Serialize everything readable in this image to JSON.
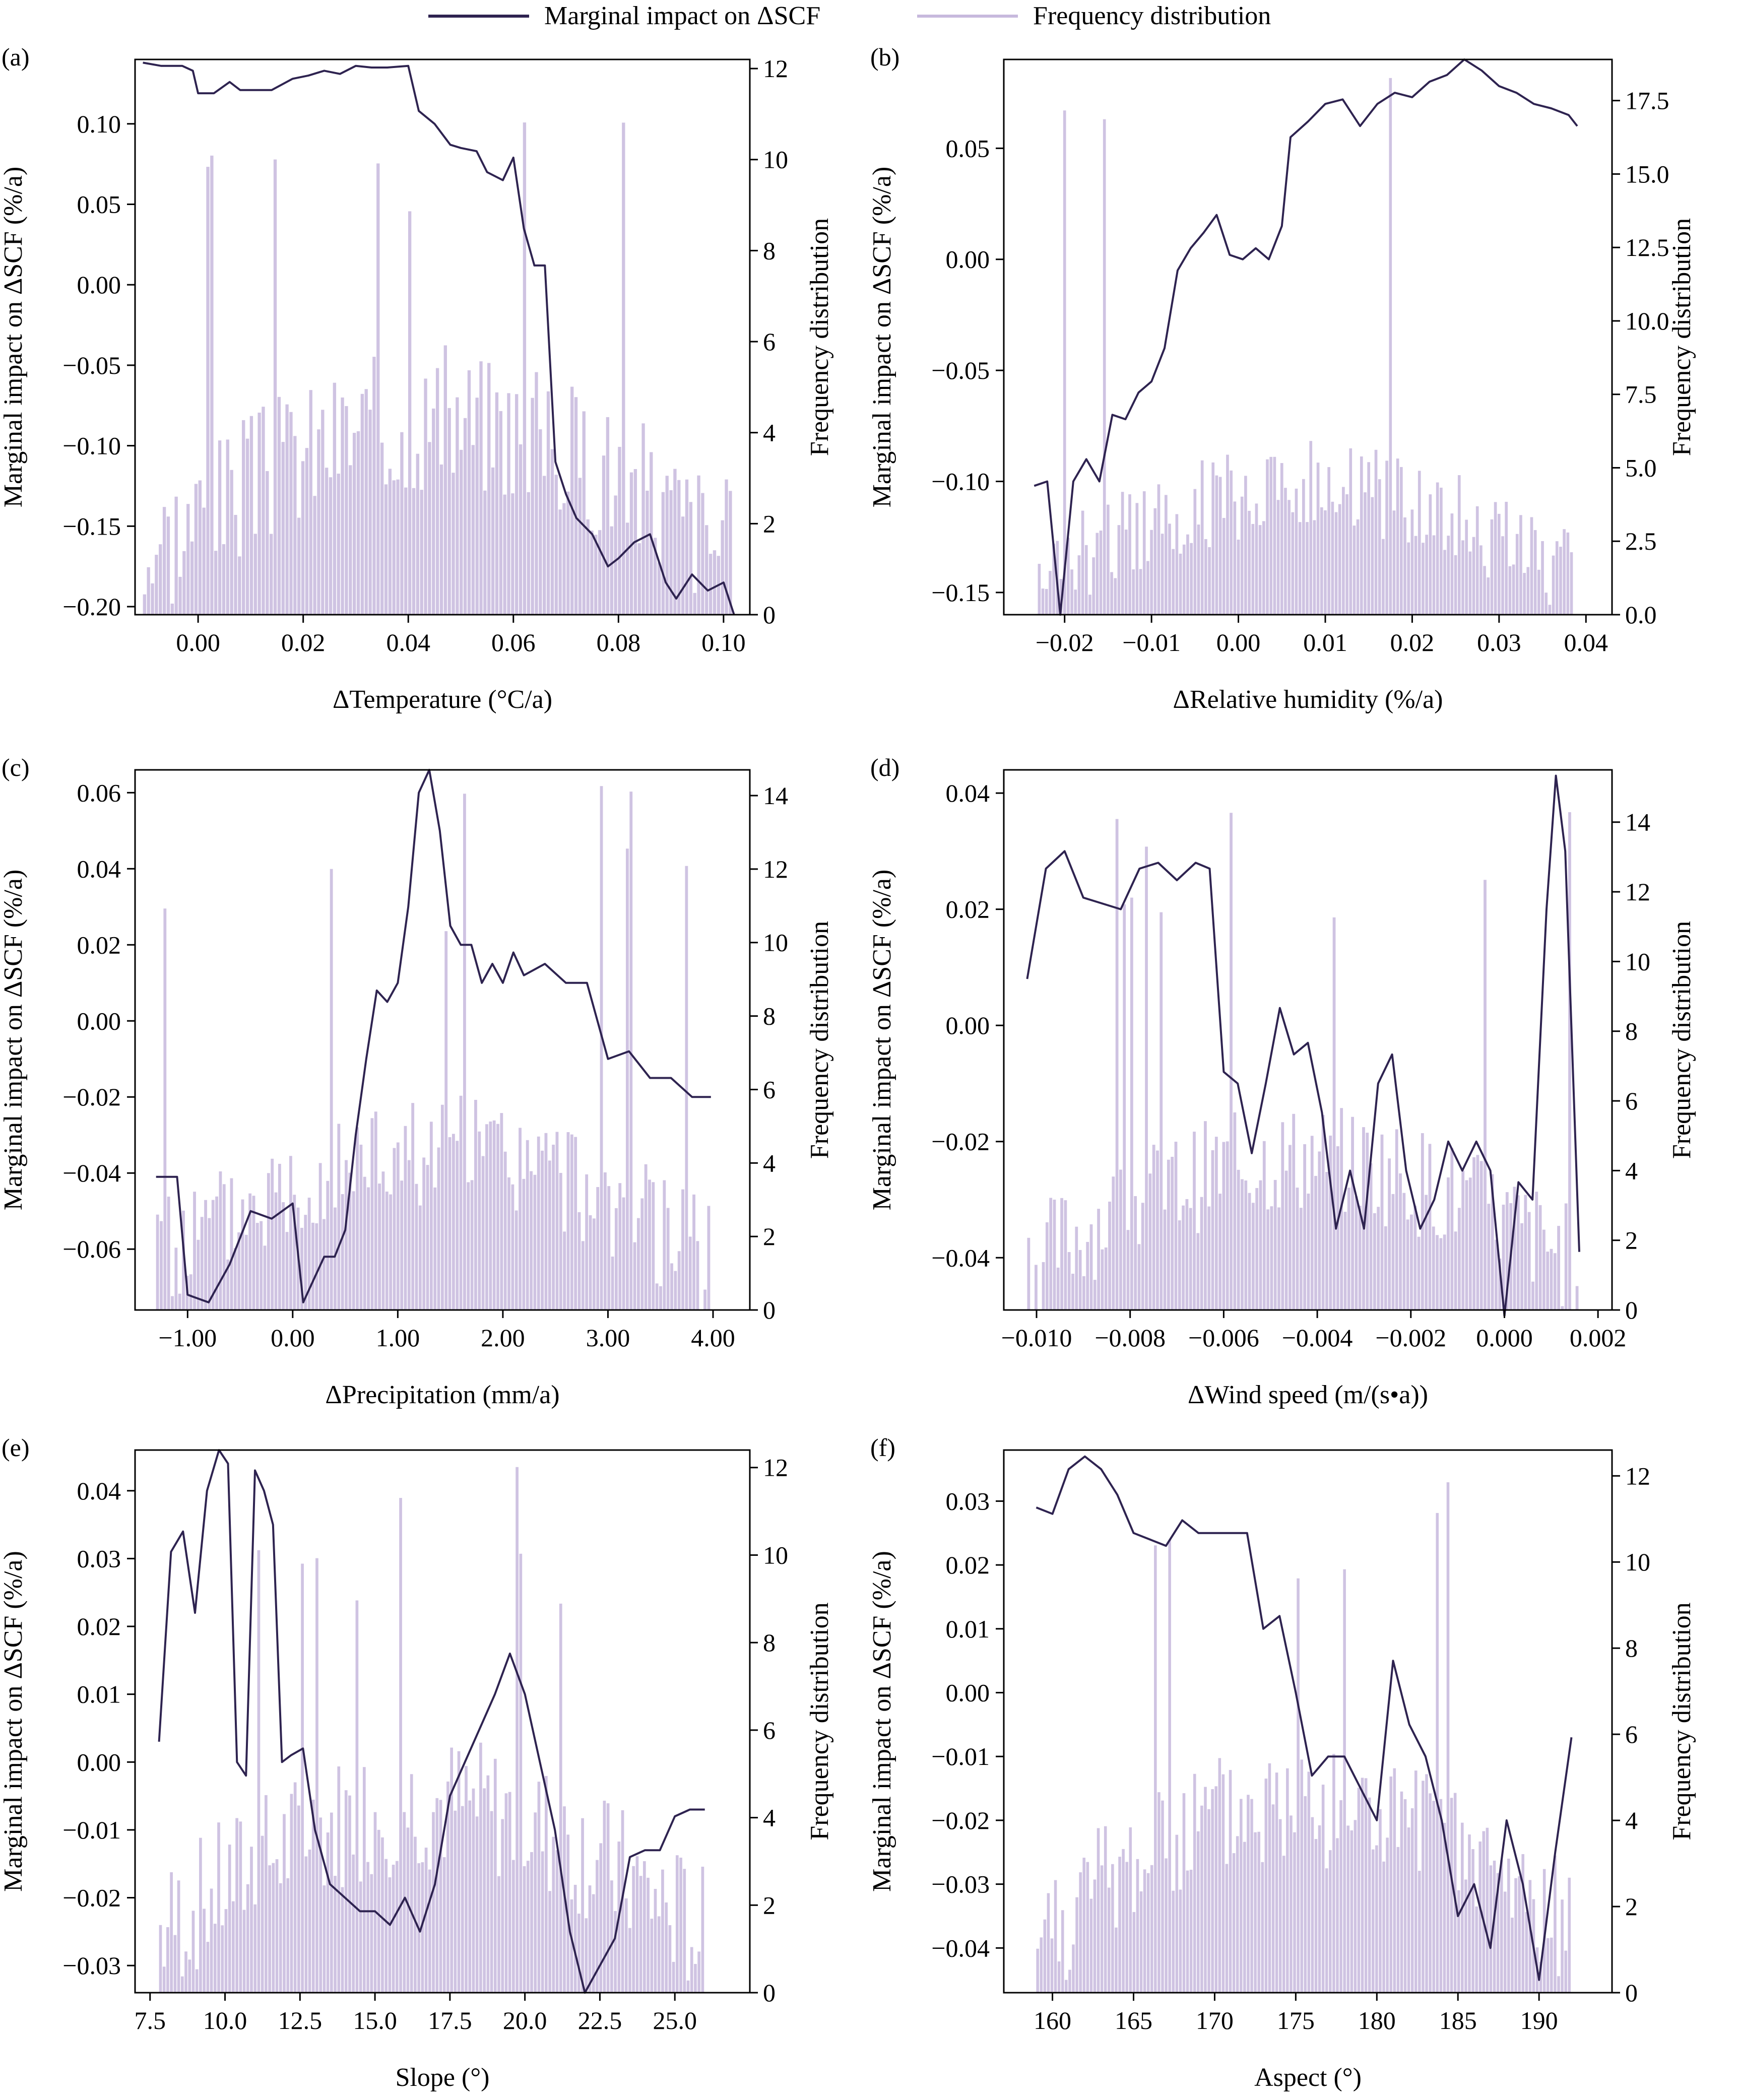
{
  "legend": {
    "line_label": "Marginal impact on ΔSCF",
    "bar_label": "Frequency distribution",
    "line_color": "#2e2350",
    "bar_color": "#c7b9dd"
  },
  "chart_data": [
    {
      "panel": "(a)",
      "type": "line+histogram",
      "xlabel": "ΔTemperature (°C/a)",
      "ylabel": "Marginal impact on ΔSCF (%/a)",
      "y2label": "Frequency distribution",
      "xlim": [
        -0.012,
        0.105
      ],
      "ylim": [
        -0.205,
        0.14
      ],
      "y2lim": [
        0,
        12.2
      ],
      "x_ticks": [
        "0.00",
        "0.02",
        "0.04",
        "0.06",
        "0.08",
        "0.10"
      ],
      "y_ticks": [
        "0.10",
        "0.05",
        "0.00",
        "-0.05",
        "-0.10",
        "-0.15",
        "-0.20"
      ],
      "y2_ticks": [
        "0",
        "2",
        "4",
        "6",
        "8",
        "10",
        "12"
      ],
      "hist_range": [
        -0.0105,
        0.1025
      ],
      "line": {
        "x": [
          -0.0105,
          -0.007,
          -0.003,
          -0.001,
          0.0,
          0.003,
          0.006,
          0.008,
          0.011,
          0.014,
          0.018,
          0.021,
          0.024,
          0.027,
          0.03,
          0.033,
          0.036,
          0.04,
          0.042,
          0.045,
          0.048,
          0.05,
          0.053,
          0.055,
          0.058,
          0.06,
          0.062,
          0.064,
          0.066,
          0.068,
          0.07,
          0.072,
          0.075,
          0.078,
          0.08,
          0.083,
          0.086,
          0.089,
          0.091,
          0.094,
          0.097,
          0.1,
          0.102
        ],
        "y": [
          0.138,
          0.136,
          0.136,
          0.133,
          0.119,
          0.119,
          0.126,
          0.121,
          0.121,
          0.121,
          0.128,
          0.13,
          0.133,
          0.131,
          0.136,
          0.135,
          0.135,
          0.136,
          0.108,
          0.1,
          0.087,
          0.085,
          0.083,
          0.07,
          0.065,
          0.079,
          0.035,
          0.012,
          0.012,
          -0.11,
          -0.13,
          -0.145,
          -0.155,
          -0.175,
          -0.17,
          -0.16,
          -0.155,
          -0.185,
          -0.195,
          -0.18,
          -0.19,
          -0.185,
          -0.205
        ]
      }
    },
    {
      "panel": "(b)",
      "type": "line+histogram",
      "xlabel": "ΔRelative humidity (%/a)",
      "ylabel": "Marginal impact on ΔSCF (%/a)",
      "y2label": "Frequency distribution",
      "xlim": [
        -0.027,
        0.043
      ],
      "ylim": [
        -0.16,
        0.09
      ],
      "y2lim": [
        0,
        18.9
      ],
      "x_ticks": [
        "-0.02",
        "-0.01",
        "0.00",
        "0.01",
        "0.02",
        "0.03",
        "0.04"
      ],
      "y_ticks": [
        "0.05",
        "0.00",
        "-0.05",
        "-0.10",
        "-0.15"
      ],
      "y2_ticks": [
        "0.0",
        "2.5",
        "5.0",
        "7.5",
        "10.0",
        "12.5",
        "15.0",
        "17.5"
      ],
      "hist_range": [
        -0.0235,
        0.039
      ],
      "line": {
        "x": [
          -0.0235,
          -0.022,
          -0.0205,
          -0.019,
          -0.0175,
          -0.016,
          -0.0145,
          -0.013,
          -0.0115,
          -0.01,
          -0.0085,
          -0.007,
          -0.0055,
          -0.004,
          -0.0025,
          -0.001,
          0.0005,
          0.002,
          0.0035,
          0.005,
          0.006,
          0.008,
          0.01,
          0.012,
          0.014,
          0.016,
          0.018,
          0.02,
          0.022,
          0.024,
          0.026,
          0.028,
          0.03,
          0.032,
          0.034,
          0.036,
          0.038,
          0.039
        ],
        "y": [
          -0.102,
          -0.1,
          -0.16,
          -0.1,
          -0.09,
          -0.1,
          -0.07,
          -0.072,
          -0.06,
          -0.055,
          -0.04,
          -0.005,
          0.005,
          0.012,
          0.02,
          0.002,
          0.0,
          0.005,
          0.0,
          0.015,
          0.055,
          0.062,
          0.07,
          0.072,
          0.06,
          0.07,
          0.075,
          0.073,
          0.08,
          0.083,
          0.09,
          0.085,
          0.078,
          0.075,
          0.07,
          0.068,
          0.065,
          0.06
        ]
      }
    },
    {
      "panel": "(c)",
      "type": "line+histogram",
      "xlabel": "ΔPrecipitation (mm/a)",
      "ylabel": "Marginal impact on ΔSCF (%/a)",
      "y2label": "Frequency distribution",
      "xlim": [
        -1.5,
        4.35
      ],
      "ylim": [
        -0.076,
        0.066
      ],
      "y2lim": [
        0,
        14.7
      ],
      "x_ticks": [
        "-1.00",
        "0.00",
        "1.00",
        "2.00",
        "3.00",
        "4.00"
      ],
      "y_ticks": [
        "0.06",
        "0.04",
        "0.02",
        "0.00",
        "-0.02",
        "-0.04",
        "-0.06"
      ],
      "y2_ticks": [
        "0",
        "2",
        "4",
        "6",
        "8",
        "10",
        "12",
        "14"
      ],
      "hist_range": [
        -1.3,
        3.98
      ],
      "line": {
        "x": [
          -1.3,
          -1.1,
          -1.0,
          -0.8,
          -0.6,
          -0.4,
          -0.2,
          0.0,
          0.1,
          0.2,
          0.3,
          0.4,
          0.5,
          0.6,
          0.7,
          0.8,
          0.9,
          1.0,
          1.1,
          1.2,
          1.3,
          1.4,
          1.5,
          1.6,
          1.7,
          1.8,
          1.9,
          2.0,
          2.1,
          2.2,
          2.4,
          2.6,
          2.8,
          3.0,
          3.2,
          3.4,
          3.6,
          3.8,
          3.98
        ],
        "y": [
          -0.041,
          -0.041,
          -0.072,
          -0.074,
          -0.064,
          -0.05,
          -0.052,
          -0.048,
          -0.074,
          -0.068,
          -0.062,
          -0.062,
          -0.055,
          -0.03,
          -0.01,
          0.008,
          0.005,
          0.01,
          0.03,
          0.06,
          0.066,
          0.05,
          0.025,
          0.02,
          0.02,
          0.01,
          0.015,
          0.01,
          0.018,
          0.012,
          0.015,
          0.01,
          0.01,
          -0.01,
          -0.008,
          -0.015,
          -0.015,
          -0.02,
          -0.02
        ]
      }
    },
    {
      "panel": "(d)",
      "type": "line+histogram",
      "xlabel": "ΔWind speed (m/(s•a))",
      "ylabel": "Marginal impact on ΔSCF (%/a)",
      "y2label": "Frequency distribution",
      "xlim": [
        -0.0107,
        0.0023
      ],
      "ylim": [
        -0.049,
        0.044
      ],
      "y2lim": [
        0,
        15.5
      ],
      "x_ticks": [
        "-0.010",
        "-0.008",
        "-0.006",
        "-0.004",
        "-0.002",
        "0.000",
        "0.002"
      ],
      "y_ticks": [
        "0.04",
        "0.02",
        "0.00",
        "-0.02",
        "-0.04"
      ],
      "y2_ticks": [
        "0",
        "2",
        "4",
        "6",
        "8",
        "10",
        "12",
        "14"
      ],
      "hist_range": [
        -0.0102,
        0.0016
      ],
      "line": {
        "x": [
          -0.0102,
          -0.0098,
          -0.0094,
          -0.009,
          -0.0086,
          -0.0082,
          -0.0078,
          -0.0074,
          -0.007,
          -0.0066,
          -0.0063,
          -0.006,
          -0.0057,
          -0.0054,
          -0.0051,
          -0.0048,
          -0.0045,
          -0.0042,
          -0.0039,
          -0.0036,
          -0.0033,
          -0.003,
          -0.0027,
          -0.0024,
          -0.0021,
          -0.0018,
          -0.0015,
          -0.0012,
          -0.0009,
          -0.0006,
          -0.0003,
          0.0,
          0.0003,
          0.0006,
          0.0009,
          0.0011,
          0.0013,
          0.0016
        ],
        "y": [
          0.008,
          0.027,
          0.03,
          0.022,
          0.021,
          0.02,
          0.027,
          0.028,
          0.025,
          0.028,
          0.027,
          -0.008,
          -0.01,
          -0.022,
          -0.01,
          0.003,
          -0.005,
          -0.003,
          -0.015,
          -0.035,
          -0.025,
          -0.035,
          -0.01,
          -0.005,
          -0.025,
          -0.035,
          -0.03,
          -0.02,
          -0.025,
          -0.02,
          -0.025,
          -0.05,
          -0.027,
          -0.03,
          0.02,
          0.043,
          0.03,
          -0.039
        ]
      }
    },
    {
      "panel": "(e)",
      "type": "line+histogram",
      "xlabel": "Slope (°)",
      "ylabel": "Marginal impact on ΔSCF (%/a)",
      "y2label": "Frequency distribution",
      "xlim": [
        7.0,
        27.5
      ],
      "ylim": [
        -0.034,
        0.046
      ],
      "y2lim": [
        0,
        12.4
      ],
      "x_ticks": [
        "7.5",
        "10.0",
        "12.5",
        "15.0",
        "17.5",
        "20.0",
        "22.5",
        "25.0"
      ],
      "y_ticks": [
        "0.04",
        "0.03",
        "0.02",
        "0.01",
        "0.00",
        "-0.01",
        "-0.02",
        "-0.03"
      ],
      "y2_ticks": [
        "0",
        "2",
        "4",
        "6",
        "8",
        "10",
        "12"
      ],
      "hist_range": [
        7.8,
        26.0
      ],
      "line": {
        "x": [
          7.8,
          8.2,
          8.6,
          9.0,
          9.4,
          9.8,
          10.1,
          10.4,
          10.7,
          11.0,
          11.3,
          11.6,
          11.9,
          12.2,
          12.6,
          13.0,
          13.5,
          14.0,
          14.5,
          15.0,
          15.5,
          16.0,
          16.5,
          17.0,
          17.5,
          18.0,
          18.5,
          19.0,
          19.5,
          20.0,
          20.5,
          21.0,
          21.5,
          22.0,
          22.5,
          23.0,
          23.5,
          24.0,
          24.5,
          25.0,
          25.5,
          26.0
        ],
        "y": [
          0.003,
          0.031,
          0.034,
          0.022,
          0.04,
          0.046,
          0.044,
          0.0,
          -0.002,
          0.043,
          0.04,
          0.035,
          0.0,
          0.001,
          0.002,
          -0.01,
          -0.018,
          -0.02,
          -0.022,
          -0.022,
          -0.024,
          -0.02,
          -0.025,
          -0.018,
          -0.005,
          0.0,
          0.005,
          0.01,
          0.016,
          0.01,
          0.0,
          -0.01,
          -0.025,
          -0.034,
          -0.03,
          -0.026,
          -0.014,
          -0.013,
          -0.013,
          -0.008,
          -0.007,
          -0.007
        ]
      }
    },
    {
      "panel": "(f)",
      "type": "line+histogram",
      "xlabel": "Aspect (°)",
      "ylabel": "Marginal impact on ΔSCF (%/a)",
      "y2label": "Frequency distribution",
      "xlim": [
        157.0,
        194.5
      ],
      "ylim": [
        -0.047,
        0.038
      ],
      "y2lim": [
        0,
        12.6
      ],
      "x_ticks": [
        "160",
        "165",
        "170",
        "175",
        "180",
        "185",
        "190"
      ],
      "y_ticks": [
        "0.03",
        "0.02",
        "0.01",
        "0.00",
        "-0.01",
        "-0.02",
        "-0.03",
        "-0.04"
      ],
      "y2_ticks": [
        "0",
        "2",
        "4",
        "6",
        "8",
        "10",
        "12"
      ],
      "hist_range": [
        159.0,
        192.0
      ],
      "line": {
        "x": [
          159.0,
          160.0,
          161.0,
          162.0,
          163.0,
          164.0,
          165.0,
          166.0,
          167.0,
          168.0,
          169.0,
          170.0,
          171.0,
          172.0,
          173.0,
          174.0,
          175.0,
          176.0,
          177.0,
          178.0,
          179.0,
          180.0,
          181.0,
          182.0,
          183.0,
          184.0,
          185.0,
          186.0,
          187.0,
          188.0,
          189.0,
          190.0,
          191.0,
          192.0
        ],
        "y": [
          0.029,
          0.028,
          0.035,
          0.037,
          0.035,
          0.031,
          0.025,
          0.024,
          0.023,
          0.027,
          0.025,
          0.025,
          0.025,
          0.025,
          0.01,
          0.012,
          0.0,
          -0.013,
          -0.01,
          -0.01,
          -0.015,
          -0.02,
          0.005,
          -0.005,
          -0.01,
          -0.02,
          -0.035,
          -0.03,
          -0.04,
          -0.02,
          -0.03,
          -0.045,
          -0.025,
          -0.007
        ]
      }
    }
  ]
}
